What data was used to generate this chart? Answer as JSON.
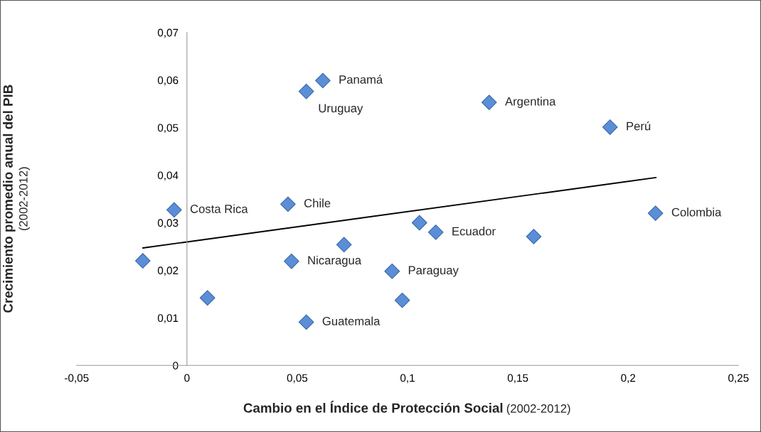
{
  "chart_data": {
    "type": "scatter",
    "xlabel": "Cambio en el Índice de Protección Social (2002-2012)",
    "ylabel": "Crecimiento promedio anual del PIB (2002-2012)",
    "xlim": [
      -0.05,
      0.25
    ],
    "xticks": [
      {
        "value": -0.05,
        "label": "-0,05"
      },
      {
        "value": 0,
        "label": "0"
      },
      {
        "value": 0.05,
        "label": "0,05"
      },
      {
        "value": 0.1,
        "label": "0,1"
      },
      {
        "value": 0.15,
        "label": "0,15"
      },
      {
        "value": 0.2,
        "label": "0,2"
      },
      {
        "value": 0.25,
        "label": "0,25"
      }
    ],
    "ylim": [
      0,
      0.07
    ],
    "yticks": [
      {
        "value": 0,
        "label": "0"
      },
      {
        "value": 0.01,
        "label": "0,01"
      },
      {
        "value": 0.02,
        "label": "0,02"
      },
      {
        "value": 0.03,
        "label": "0,03"
      },
      {
        "value": 0.04,
        "label": "0,04"
      },
      {
        "value": 0.05,
        "label": "0,05"
      },
      {
        "value": 0.06,
        "label": "0,06"
      },
      {
        "value": 0.07,
        "label": "0,07"
      }
    ],
    "grid": false,
    "legend": false,
    "marker": "diamond",
    "series": [
      {
        "color": "#5b8ed6",
        "x": [
          0.0616,
          0.0541,
          0.137,
          0.1918,
          -0.0058,
          0.0458,
          0.2124,
          0.1128,
          0.1054,
          0.1572,
          0.0712,
          0.0474,
          0.093,
          0.0976,
          -0.02,
          0.0093,
          0.0541
        ],
        "values": [
          0.0599,
          0.0576,
          0.0553,
          0.0501,
          0.0327,
          0.0339,
          0.032,
          0.028,
          0.03,
          0.0271,
          0.0254,
          0.0219,
          0.0198,
          0.0137,
          0.022,
          0.0142,
          0.0091
        ]
      },
      {
        "type": "line",
        "color": "#000000",
        "x": [
          -0.02,
          0.2126
        ],
        "values": [
          0.0247,
          0.0395
        ],
        "marker": "none",
        "line_style": "solid"
      }
    ],
    "annotations": [
      {
        "text": "Panamá",
        "x": 0.0616,
        "y": 0.0599
      },
      {
        "text": "Uruguay",
        "x": 0.0541,
        "y": 0.0576
      },
      {
        "text": "Argentina",
        "x": 0.137,
        "y": 0.0553
      },
      {
        "text": "Perú",
        "x": 0.1918,
        "y": 0.0501
      },
      {
        "text": "Costa Rica",
        "x": -0.0058,
        "y": 0.0327
      },
      {
        "text": "Chile",
        "x": 0.0458,
        "y": 0.0339
      },
      {
        "text": "Colombia",
        "x": 0.2124,
        "y": 0.032
      },
      {
        "text": "Ecuador",
        "x": 0.1128,
        "y": 0.028
      },
      {
        "text": "Nicaragua",
        "x": 0.0474,
        "y": 0.0219
      },
      {
        "text": "Paraguay",
        "x": 0.093,
        "y": 0.0198
      },
      {
        "text": "Guatemala",
        "x": 0.0541,
        "y": 0.0091
      }
    ]
  }
}
